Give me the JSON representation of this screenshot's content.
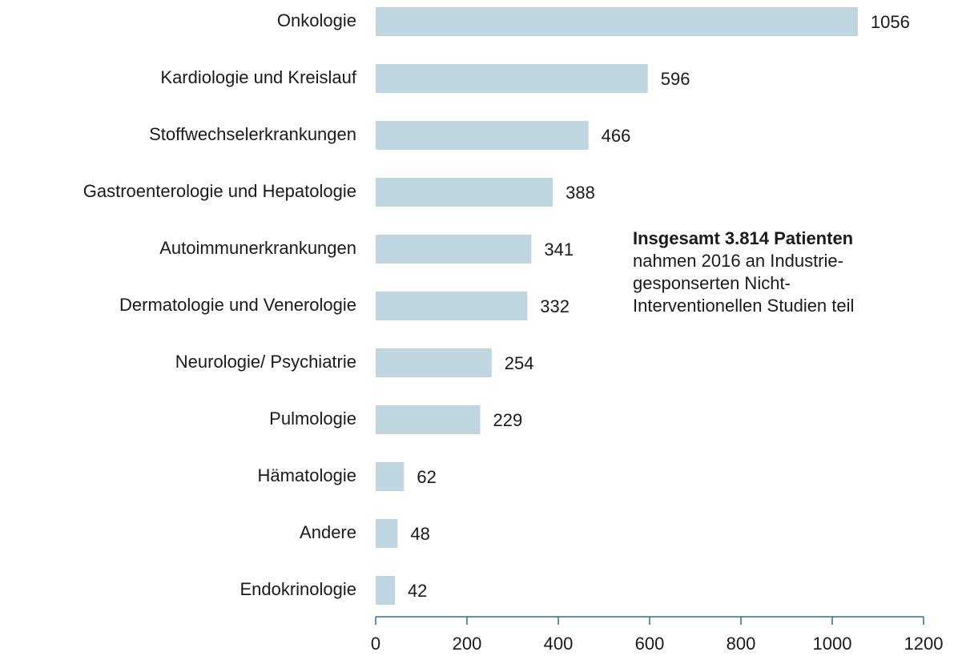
{
  "chart_data": {
    "type": "hbar",
    "categories": [
      "Onkologie",
      "Kardiologie und Kreislauf",
      "Stoffwechselerkrankungen",
      "Gastroenterologie und Hepatologie",
      "Autoimmunerkrankungen",
      "Dermatologie und Venerologie",
      "Neurologie/ Psychiatrie",
      "Pulmologie",
      "Hämatologie",
      "Andere",
      "Endokrinologie"
    ],
    "values": [
      1056,
      596,
      466,
      388,
      341,
      332,
      254,
      229,
      62,
      48,
      42
    ],
    "color": "#bfd5df",
    "xlim": [
      0,
      1200
    ],
    "xticks": [
      0,
      200,
      400,
      600,
      800,
      1000,
      1200
    ],
    "annotation": {
      "bold": "Insgesamt 3.814 Patienten",
      "lines": [
        "nahmen 2016 an Industrie-",
        "gesponserten Nicht-",
        "Interventionellen Studien teil"
      ]
    }
  }
}
